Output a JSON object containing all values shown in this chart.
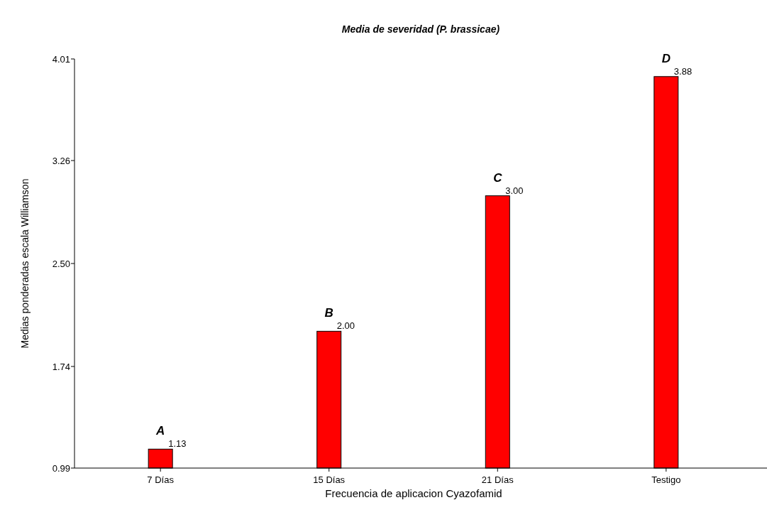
{
  "chart_data": {
    "type": "bar",
    "title": "Media de severidad (P. brassicae)",
    "xlabel": "Frecuencia de aplicacion Cyazofamid",
    "ylabel": "Medias ponderadas escala Williamson",
    "categories": [
      "7 Días",
      "15 Días",
      "21 Días",
      "Testigo"
    ],
    "values": [
      1.13,
      2.0,
      3.0,
      3.88
    ],
    "color": "#ff0000",
    "value_labels": [
      "1.13",
      "2.00",
      "3.00",
      "3.88"
    ],
    "ylim": [
      0.99,
      4.01
    ],
    "yticks": [
      {
        "value": 0.99,
        "label": "0.99"
      },
      {
        "value": 1.74,
        "label": "1.74"
      },
      {
        "value": 2.5,
        "label": "2.50"
      },
      {
        "value": 3.26,
        "label": "3.26"
      },
      {
        "value": 4.01,
        "label": "4.01"
      }
    ],
    "annotations": [
      {
        "text": "A",
        "x": "7 Días",
        "y": 1.13
      },
      {
        "text": "B",
        "x": "15 Días",
        "y": 2.0
      },
      {
        "text": "C",
        "x": "21 Días",
        "y": 3.0
      },
      {
        "text": "D",
        "x": "Testigo",
        "y": 3.88
      }
    ],
    "grid": false
  }
}
